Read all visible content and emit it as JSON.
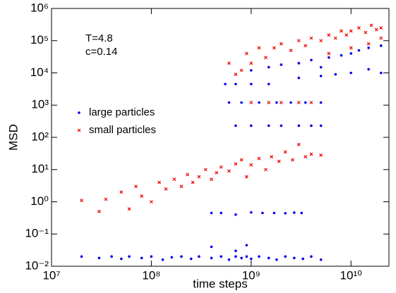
{
  "chart_data": {
    "type": "scatter",
    "xlabel": "time steps",
    "ylabel": "MSD",
    "annotations": [
      "T=4.8",
      "c=0.14"
    ],
    "log_x": true,
    "log_y": true,
    "legend": "left",
    "xlim": [
      10000000.0,
      24000000000.0
    ],
    "ylim": [
      0.01,
      1000000
    ],
    "xticks": [
      {
        "value": 10000000.0,
        "label": "10⁷"
      },
      {
        "value": 100000000.0,
        "label": "10⁸"
      },
      {
        "value": 1000000000.0,
        "label": "10⁹"
      },
      {
        "value": 10000000000.0,
        "label": "10¹⁰"
      }
    ],
    "yticks": [
      {
        "value": 0.01,
        "label": "10⁻²"
      },
      {
        "value": 0.1,
        "label": "10⁻¹"
      },
      {
        "value": 1,
        "label": "10⁰"
      },
      {
        "value": 10,
        "label": "10¹"
      },
      {
        "value": 100,
        "label": "10²"
      },
      {
        "value": 1000,
        "label": "10³"
      },
      {
        "value": 10000,
        "label": "10⁴"
      },
      {
        "value": 100000,
        "label": "10⁵"
      },
      {
        "value": 1000000,
        "label": "10⁶"
      }
    ],
    "series": [
      {
        "name": "large particles",
        "color": "#0000ee",
        "marker": "circle",
        "x": [
          20000000.0,
          30000000.0,
          40000000.0,
          50000000.0,
          60000000.0,
          80000000.0,
          100000000.0,
          130000000.0,
          160000000.0,
          200000000.0,
          250000000.0,
          300000000.0,
          400000000.0,
          500000000.0,
          600000000.0,
          700000000.0,
          800000000.0,
          900000000.0,
          1000000000.0,
          1200000000.0,
          1500000000.0,
          1800000000.0,
          2200000000.0,
          2700000000.0,
          3300000000.0,
          4000000000.0,
          5000000000.0,
          400000000.0,
          700000000.0,
          900000000.0,
          400000000.0,
          500000000.0,
          700000000.0,
          1000000000.0,
          1300000000.0,
          1700000000.0,
          2200000000.0,
          2700000000.0,
          3200000000.0,
          700000000.0,
          1000000000.0,
          1500000000.0,
          2000000000.0,
          3000000000.0,
          4000000000.0,
          5000000000.0,
          600000000.0,
          800000000.0,
          1200000000.0,
          1800000000.0,
          2500000000.0,
          3500000000.0,
          5000000000.0,
          550000000.0,
          700000000.0,
          1000000000.0,
          1500000000.0,
          1000000000.0,
          1500000000.0,
          2000000000.0,
          3000000000.0,
          4000000000.0,
          5000000000.0,
          6000000000.0,
          8000000000.0,
          10000000000.0,
          12000000000.0,
          15000000000.0,
          20000000000.0,
          20000000000.0,
          15000000000.0,
          10000000000.0,
          7000000000.0,
          5000000000.0,
          3000000000.0
        ],
        "values": [
          0.02,
          0.018,
          0.02,
          0.017,
          0.02,
          0.018,
          0.02,
          0.016,
          0.019,
          0.02,
          0.017,
          0.02,
          0.018,
          0.02,
          0.016,
          0.02,
          0.018,
          0.02,
          0.017,
          0.02,
          0.018,
          0.016,
          0.02,
          0.018,
          0.017,
          0.02,
          0.016,
          0.04,
          0.03,
          0.045,
          0.45,
          0.45,
          0.4,
          0.47,
          0.45,
          0.45,
          0.44,
          0.46,
          0.45,
          230,
          230,
          230,
          230,
          230,
          230,
          230,
          1200,
          1200,
          1200,
          1200,
          1200,
          1200,
          1200,
          4500,
          4500,
          4500,
          4500,
          12000,
          15000,
          18000,
          20000,
          25000,
          15000,
          30000,
          35000,
          40000,
          50000,
          60000,
          70000,
          10000,
          13000,
          10000,
          9000,
          8000,
          7000
        ]
      },
      {
        "name": "small particles",
        "color": "#ee0000",
        "marker": "x",
        "x": [
          20000000.0,
          30000000.0,
          35000000.0,
          50000000.0,
          60000000.0,
          70000000.0,
          80000000.0,
          100000000.0,
          120000000.0,
          140000000.0,
          170000000.0,
          200000000.0,
          230000000.0,
          260000000.0,
          300000000.0,
          350000000.0,
          400000000.0,
          450000000.0,
          500000000.0,
          600000000.0,
          700000000.0,
          800000000.0,
          900000000.0,
          1000000000.0,
          1200000000.0,
          1400000000.0,
          1600000000.0,
          1900000000.0,
          2200000000.0,
          2600000000.0,
          3000000000.0,
          3500000000.0,
          4000000000.0,
          5000000000.0,
          600000000.0,
          700000000.0,
          800000000.0,
          900000000.0,
          1000000000.0,
          1200000000.0,
          1400000000.0,
          1000000000.0,
          1500000000.0,
          2000000000.0,
          3000000000.0,
          4000000000.0,
          1700000000.0,
          2000000000.0,
          2500000000.0,
          3000000000.0,
          3500000000.0,
          4000000000.0,
          5000000000.0,
          6000000000.0,
          7000000000.0,
          8000000000.0,
          9000000000.0,
          10000000000.0,
          12000000000.0,
          14000000000.0,
          16000000000.0,
          18000000000.0,
          20000000000.0,
          20000000000.0,
          15000000000.0,
          10000000000.0,
          6000000000.0
        ],
        "values": [
          1.1,
          0.5,
          1.2,
          2,
          0.6,
          3,
          1.5,
          1,
          4,
          2.5,
          5,
          3,
          7,
          4,
          6,
          10,
          5,
          8,
          12,
          9,
          15,
          20,
          6,
          14,
          22,
          10,
          25,
          18,
          35,
          20,
          60,
          25,
          30,
          28,
          20000,
          9000,
          12000,
          40000,
          20000,
          60000,
          30000,
          1200,
          1200,
          1200,
          1200,
          1200,
          60000,
          80000,
          50000,
          100000,
          70000,
          120000,
          100000,
          150000,
          120000,
          200000,
          150000,
          200000,
          250000,
          180000,
          300000,
          220000,
          250000,
          120000,
          80000,
          60000,
          40000
        ]
      }
    ]
  }
}
